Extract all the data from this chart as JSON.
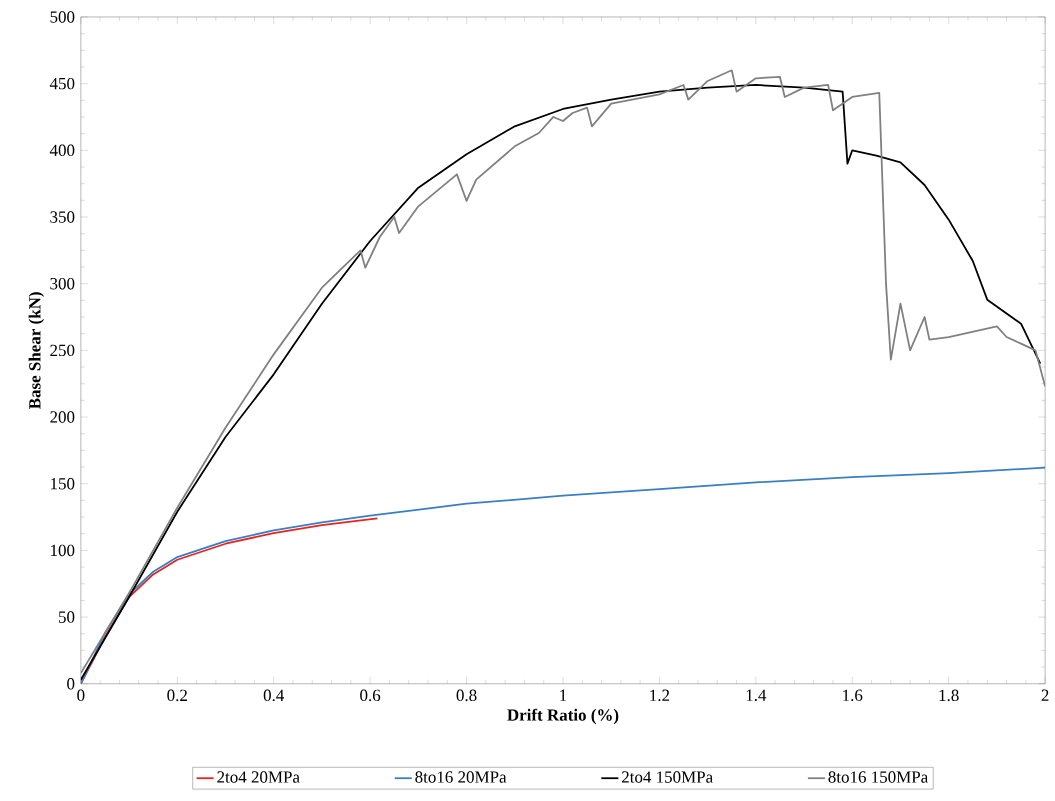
{
  "chart_data": {
    "type": "line",
    "xlabel": "Drift Ratio (%)",
    "ylabel": "Base Shear (kN)",
    "xlim": [
      0,
      2
    ],
    "xticks": [
      0,
      0.2,
      0.4,
      0.6,
      0.8,
      1,
      1.2,
      1.4,
      1.6,
      1.8,
      2
    ],
    "ylim": [
      0,
      500
    ],
    "yticks": [
      0,
      50,
      100,
      150,
      200,
      250,
      300,
      350,
      400,
      450,
      500
    ],
    "legend": "bottom",
    "grid": false,
    "marker": "none",
    "line_style": "solid",
    "series": [
      {
        "name": "2to4 20MPa",
        "color": "#e8231e",
        "x": [
          0,
          0.05,
          0.1,
          0.15,
          0.2,
          0.3,
          0.4,
          0.5,
          0.615
        ],
        "values": [
          0,
          35,
          65,
          82,
          93,
          105,
          113,
          119,
          124
        ]
      },
      {
        "name": "8to16 20MPa",
        "color": "#3a7fc1",
        "x": [
          0,
          0.05,
          0.1,
          0.15,
          0.2,
          0.3,
          0.4,
          0.5,
          0.6,
          0.8,
          1.0,
          1.2,
          1.4,
          1.6,
          1.8,
          2.0
        ],
        "values": [
          0,
          38,
          67,
          84,
          95,
          107,
          115,
          121,
          126,
          135,
          141,
          146,
          151,
          155,
          158,
          162
        ]
      },
      {
        "name": "2to4 150MPa",
        "color": "#000000",
        "x": [
          0,
          0.1,
          0.2,
          0.3,
          0.4,
          0.5,
          0.6,
          0.7,
          0.8,
          0.9,
          1.0,
          1.1,
          1.2,
          1.3,
          1.4,
          1.5,
          1.58,
          1.59,
          1.6,
          1.65,
          1.7,
          1.75,
          1.8,
          1.85,
          1.88,
          1.95,
          1.99
        ],
        "values": [
          3,
          65,
          129,
          185,
          232,
          285,
          332,
          372,
          397,
          418,
          431,
          438,
          444,
          447,
          449,
          447,
          444,
          390,
          400,
          396,
          391,
          374,
          348,
          317,
          288,
          270,
          240
        ]
      },
      {
        "name": "8to16 150MPa",
        "color": "#808080",
        "x": [
          0,
          0.1,
          0.2,
          0.3,
          0.4,
          0.5,
          0.58,
          0.59,
          0.62,
          0.65,
          0.66,
          0.7,
          0.78,
          0.8,
          0.82,
          0.9,
          0.95,
          0.98,
          1.0,
          1.02,
          1.05,
          1.06,
          1.1,
          1.2,
          1.25,
          1.26,
          1.3,
          1.35,
          1.36,
          1.4,
          1.45,
          1.46,
          1.5,
          1.55,
          1.56,
          1.6,
          1.656,
          1.67,
          1.68,
          1.7,
          1.72,
          1.75,
          1.76,
          1.8,
          1.9,
          1.92,
          1.95,
          1.98,
          2.0
        ],
        "values": [
          8,
          68,
          132,
          192,
          247,
          297,
          325,
          312,
          335,
          350,
          338,
          358,
          382,
          362,
          378,
          403,
          413,
          425,
          422,
          428,
          432,
          418,
          435,
          442,
          449,
          438,
          452,
          460,
          444,
          454,
          455,
          440,
          447,
          449,
          430,
          440,
          443,
          300,
          243,
          285,
          250,
          275,
          258,
          260,
          268,
          260,
          255,
          250,
          223
        ]
      }
    ]
  }
}
